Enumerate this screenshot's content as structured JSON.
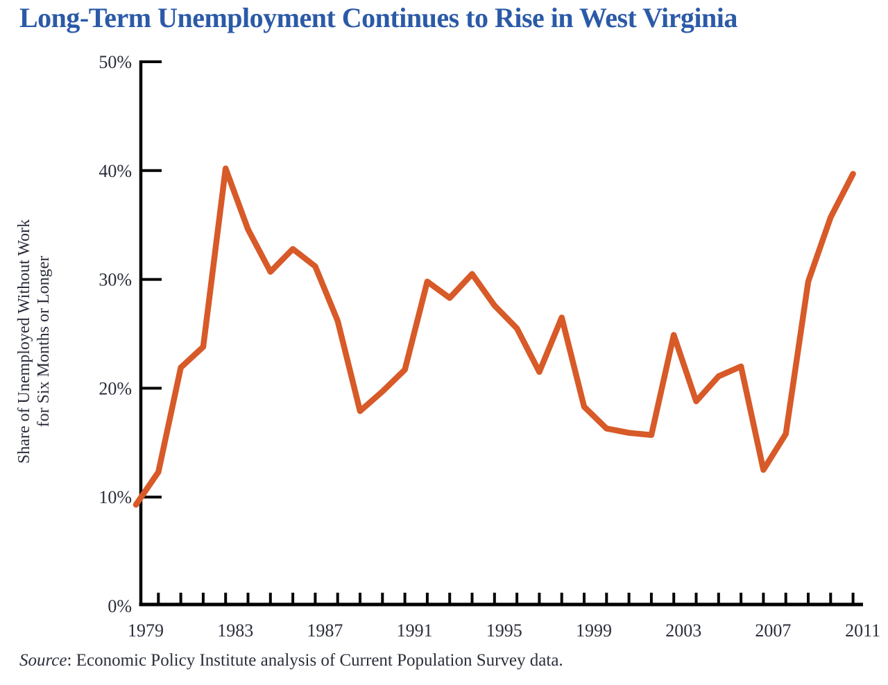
{
  "title": "Long-Term Unemployment Continues to Rise in West Virginia",
  "source": {
    "prefix": "Source",
    "rest": ": Economic Policy Institute analysis of Current Population Survey data."
  },
  "colors": {
    "title_blue": "#2B5AA7",
    "line_orange": "#D75A28",
    "axis_black": "#000000",
    "label_dark": "#2B2E3B"
  },
  "chart_data": {
    "type": "line",
    "title": "Long-Term Unemployment Continues to Rise in West Virginia",
    "xlabel": "",
    "ylabel_lines": [
      "Share of Unemployed Without Work",
      "for Six Months or Longer"
    ],
    "x": [
      1979,
      1980,
      1981,
      1982,
      1983,
      1984,
      1985,
      1986,
      1987,
      1988,
      1989,
      1990,
      1991,
      1992,
      1993,
      1994,
      1995,
      1996,
      1997,
      1998,
      1999,
      2000,
      2001,
      2002,
      2003,
      2004,
      2005,
      2006,
      2007,
      2008,
      2009,
      2010,
      2011
    ],
    "series": [
      {
        "name": "Share of unemployed without work for six months or longer, West Virginia",
        "values": [
          9.3,
          12.3,
          21.9,
          23.8,
          40.2,
          34.6,
          30.7,
          32.8,
          31.2,
          26.2,
          17.9,
          19.7,
          21.7,
          29.8,
          28.3,
          30.5,
          27.6,
          25.5,
          21.5,
          26.5,
          18.3,
          16.3,
          15.9,
          15.7,
          24.9,
          18.8,
          21.1,
          22.0,
          12.5,
          15.8,
          29.8,
          35.7,
          39.7
        ]
      }
    ],
    "ylim": [
      0,
      50
    ],
    "y_tick_values": [
      0,
      10,
      20,
      30,
      40,
      50
    ],
    "y_tick_labels": [
      "0%",
      "10%",
      "20%",
      "30%",
      "40%",
      "50%"
    ],
    "x_labeled_years": [
      1979,
      1983,
      1987,
      1991,
      1995,
      1999,
      2003,
      2007,
      2011
    ],
    "grid": false,
    "legend_position": "none"
  }
}
